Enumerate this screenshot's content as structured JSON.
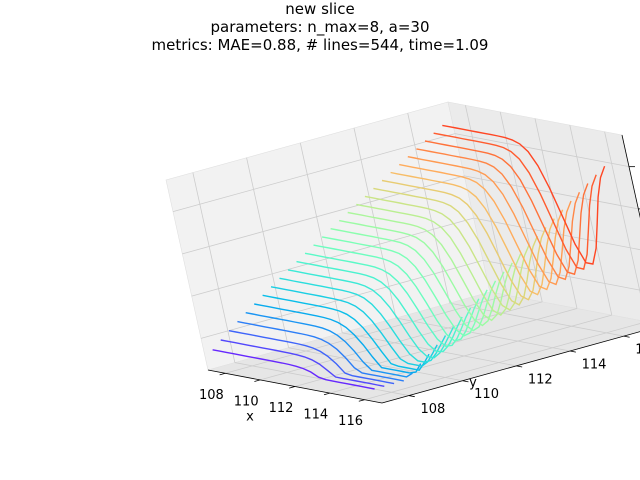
{
  "title_lines": [
    "new slice",
    "parameters: n_max=8, a=30",
    "metrics: MAE=0.88, # lines=544, time=1.09"
  ],
  "chart_data": {
    "type": "line3d",
    "title": "new slice",
    "subtitle": [
      "parameters: n_max=8, a=30",
      "metrics: MAE=0.88, # lines=544, time=1.09"
    ],
    "xlabel": "x",
    "ylabel": "y",
    "zlabel": "",
    "x_ticks": [
      "108",
      "110",
      "112",
      "114",
      "116"
    ],
    "y_ticks": [
      "108",
      "110",
      "112",
      "114",
      "116"
    ],
    "z_ticks": [
      "2",
      "4",
      "6",
      "8"
    ],
    "xlim": [
      107,
      117
    ],
    "ylim": [
      107,
      117.5
    ],
    "zlim": [
      0.5,
      9.5
    ],
    "colormap": "rainbow",
    "n_contour_levels_drawn": 28,
    "z_range_of_lines": [
      1.0,
      8.8
    ],
    "grid": true,
    "pane_color": "#f2f2f2",
    "grid_color": "#cccccc"
  }
}
